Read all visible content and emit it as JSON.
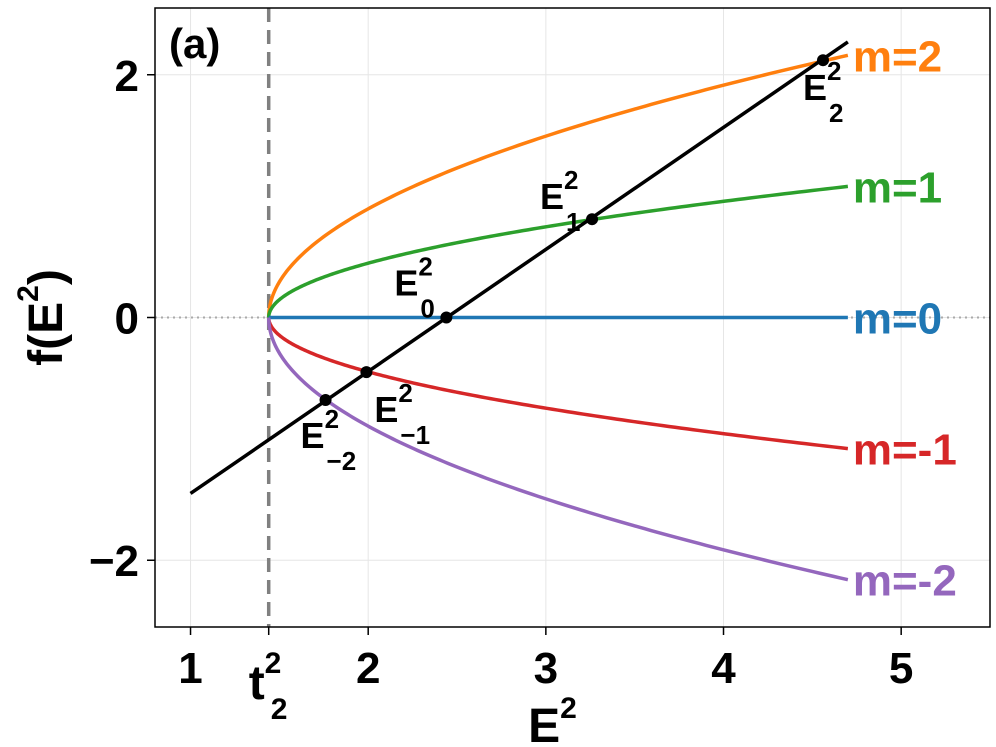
{
  "chart_data": {
    "type": "line",
    "panel_label": "(a)",
    "xlabel": {
      "base": "E",
      "sup": "2"
    },
    "ylabel": {
      "pre": "f(E",
      "sup": "2",
      "post": ")"
    },
    "xlim": [
      0.8,
      5.5
    ],
    "ylim": [
      -2.55,
      2.55
    ],
    "xticks": [
      1,
      2,
      3,
      4,
      5
    ],
    "xtick_labels": [
      "1",
      "2",
      "3",
      "4",
      "5"
    ],
    "yticks": [
      -2,
      0,
      2
    ],
    "ytick_labels": [
      "−2",
      "0",
      "2"
    ],
    "grid": true,
    "threshold": {
      "x": 1.44,
      "label_base": "t",
      "label_sup": "2",
      "label_sub": "2",
      "style": "dashed",
      "color": "#808080"
    },
    "zero_line": {
      "y": 0,
      "style": "dotted",
      "color": "#aaaaaa"
    },
    "x_end": 4.7,
    "series": [
      {
        "name": "m=2",
        "m": 2,
        "color": "#ff7f0e"
      },
      {
        "name": "m=1",
        "m": 1,
        "color": "#2ca02c"
      },
      {
        "name": "m=0",
        "m": 0,
        "color": "#1f77b4"
      },
      {
        "name": "m=-1",
        "m": -1,
        "color": "#d62728"
      },
      {
        "name": "m=-2",
        "m": -2,
        "color": "#9467bd"
      }
    ],
    "line": {
      "x": [
        1.0,
        4.7
      ],
      "y": [
        -1.45,
        2.27
      ],
      "color": "#000000"
    },
    "points": [
      {
        "label": "E",
        "sub": "2",
        "sup": "2",
        "x": 4.56,
        "y": 2.12
      },
      {
        "label": "E",
        "sub": "1",
        "sup": "2",
        "x": 3.26,
        "y": 0.81
      },
      {
        "label": "E",
        "sub": "0",
        "sup": "2",
        "x": 2.44,
        "y": 0.0
      },
      {
        "label": "E",
        "sub": "−1",
        "sup": "2",
        "x": 1.99,
        "y": -0.45
      },
      {
        "label": "E",
        "sub": "−2",
        "sup": "2",
        "x": 1.76,
        "y": -0.68
      }
    ]
  }
}
